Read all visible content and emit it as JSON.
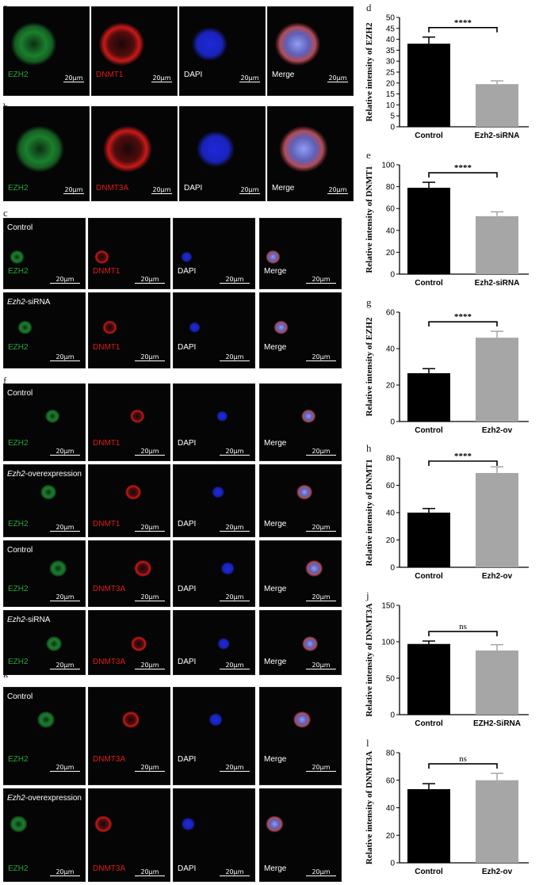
{
  "panel_letters": {
    "a": "a",
    "b": "b",
    "c": "c",
    "f": "f",
    "i": "i",
    "k": "k"
  },
  "channels": {
    "ezh2": "EZH2",
    "dnmt1": "DNMT1",
    "dnmt3a": "DNMT3A",
    "dapi": "DAPI",
    "merge": "Merge"
  },
  "conditions": {
    "control": "Control",
    "sirna_gene": "Ezh2",
    "sirna_suffix": "-siRNA",
    "ov_gene": "Ezh2",
    "ov_suffix": "-overexpression"
  },
  "scale_bar": {
    "a_large": "20μm",
    "merge_a": "20 μm",
    "standard": "20μm"
  },
  "colors": {
    "ezh2": "#22a83a",
    "dnmt": "#e01b1b",
    "dapi": "#1f2ae6",
    "bar_control": "#000000",
    "bar_treatment": "#a6a6a6"
  },
  "chart_data": [
    {
      "type": "bar",
      "panel": "d",
      "categories": [
        "Control",
        "Ezh2-siRNA"
      ],
      "values": [
        38,
        19.5
      ],
      "errors": [
        3,
        1.5
      ],
      "ylabel": "Relative intensity of EZH2",
      "ylim": [
        0,
        50
      ],
      "yticks": [
        0,
        5,
        10,
        15,
        20,
        25,
        30,
        35,
        40,
        45,
        50
      ],
      "significance": "****"
    },
    {
      "type": "bar",
      "panel": "e",
      "categories": [
        "Control",
        "Ezh2-siRNA"
      ],
      "values": [
        79,
        53
      ],
      "errors": [
        5,
        4
      ],
      "ylabel": "Relative intensity of DNMT1",
      "ylim": [
        0,
        100
      ],
      "yticks": [
        0,
        20,
        40,
        60,
        80,
        100
      ],
      "significance": "****"
    },
    {
      "type": "bar",
      "panel": "g",
      "categories": [
        "Control",
        "Ezh2-ov"
      ],
      "values": [
        26.5,
        46
      ],
      "errors": [
        2.5,
        3.5
      ],
      "ylabel": "Relative intensity of EZH2",
      "ylim": [
        0,
        60
      ],
      "yticks": [
        0,
        20,
        40,
        60
      ],
      "significance": "****"
    },
    {
      "type": "bar",
      "panel": "h",
      "categories": [
        "Control",
        "Ezh2-ov"
      ],
      "values": [
        40,
        69
      ],
      "errors": [
        3,
        4.5
      ],
      "ylabel": "Relative intensity of DNMT1",
      "ylim": [
        0,
        80
      ],
      "yticks": [
        0,
        20,
        40,
        60,
        80
      ],
      "significance": "****"
    },
    {
      "type": "bar",
      "panel": "j",
      "categories": [
        "Control",
        "EZH2-SiRNA"
      ],
      "values": [
        97,
        88
      ],
      "errors": [
        4,
        8
      ],
      "ylabel": "Relative intensity of DNMT3A",
      "ylim": [
        0,
        150
      ],
      "yticks": [
        0,
        50,
        100,
        150
      ],
      "significance": "ns"
    },
    {
      "type": "bar",
      "panel": "l",
      "categories": [
        "Control",
        "Ezh2-ov"
      ],
      "values": [
        53.5,
        60
      ],
      "errors": [
        4,
        5
      ],
      "ylabel": "Relative intensity of DNMT3A",
      "ylim": [
        0,
        80
      ],
      "yticks": [
        0,
        20,
        40,
        60,
        80
      ],
      "significance": "ns"
    }
  ]
}
